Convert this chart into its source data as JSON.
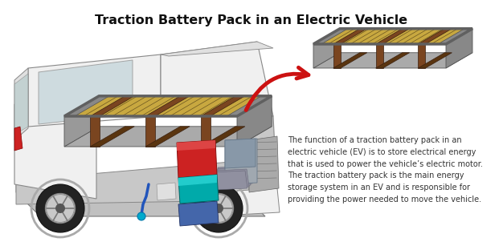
{
  "title": "Traction Battery Pack in an Electric Vehicle",
  "title_fontsize": 11.5,
  "title_fontweight": "bold",
  "bg_color": "#ffffff",
  "description_text": "The function of a traction battery pack in an\nelectric vehicle (EV) is to store electrical energy\nthat is used to power the vehicle’s electric motor.\nThe traction battery pack is the main energy\nstorage system in an EV and is responsible for\nproviding the power needed to move the vehicle.",
  "desc_fontsize": 7.0,
  "battery_yellow": "#c8a840",
  "battery_brown": "#7a4520",
  "battery_gray": "#909090",
  "battery_dark": "#444444",
  "battery_frame": "#707070",
  "arrow_color": "#cc1111",
  "motor_red": "#cc2222",
  "motor_teal": "#00aaaa",
  "car_white": "#f0f0f0",
  "car_light": "#e0e0e0",
  "car_mid": "#c8c8c8",
  "car_dark": "#a0a0a0",
  "car_outline": "#888888",
  "wheel_dark": "#2a2a2a",
  "wheel_rim": "#c0c0c0",
  "cable_blue": "#2255bb",
  "plug_cyan": "#00aacc"
}
